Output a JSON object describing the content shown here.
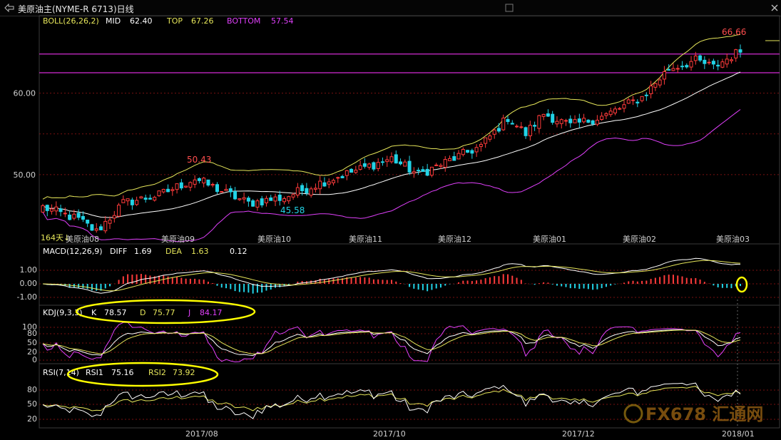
{
  "window": {
    "title": "美原油主(NYME-R 6713)日线",
    "back_icon": "back-arrow-icon",
    "scroll_icon": "scroll-handle-icon",
    "close_icon": "close-icon"
  },
  "colors": {
    "up": "#ff3b3b",
    "down": "#22d3e6",
    "boll_mid": "#ffffff",
    "boll_top": "#e6e65a",
    "boll_bottom": "#e040fb",
    "hline": "#d22bd2",
    "grid": "#7a1010",
    "axis_text": "#d0d0d0",
    "macd_dea": "#e6e65a",
    "highlight": "#ffff00"
  },
  "main_panel": {
    "indicator": "BOLL(26,26,2)",
    "mid_label": "MID",
    "mid_value": "62.40",
    "top_label": "TOP",
    "top_value": "67.26",
    "bottom_label": "BOTTOM",
    "bottom_value": "57.54",
    "y_ticks": [
      "60.00",
      "50.00"
    ],
    "high_label": "50.43",
    "low_label": "45.58",
    "last_high_label": "66.66",
    "left_label": "164天↓",
    "month_labels": [
      "美原油08",
      "美原油09",
      "美原油10",
      "美原油11",
      "美原油12",
      "美原油01",
      "美原油02",
      "美原油03"
    ],
    "hlines": [
      64.8,
      62.5
    ]
  },
  "macd_panel": {
    "indicator": "MACD(12,26,9)",
    "diff_label": "DIFF",
    "diff_value": "1.69",
    "dea_label": "DEA",
    "dea_value": "1.63",
    "macd_value": "0.12",
    "y_ticks": [
      "1.00",
      "0.00",
      "-1.00"
    ]
  },
  "kdj_panel": {
    "indicator": "KDJ(9,3,3)",
    "k_label": "K",
    "k_value": "78.57",
    "d_label": "D",
    "d_value": "75.77",
    "j_label": "J",
    "j_value": "84.17",
    "y_ticks": [
      "100",
      "80",
      "50",
      "20",
      "0"
    ]
  },
  "rsi_panel": {
    "indicator": "RSI(7,14)",
    "rsi1_label": "RSI1",
    "rsi1_value": "75.16",
    "rsi2_label": "RSI2",
    "rsi2_value": "73.92",
    "y_ticks": [
      "80",
      "50",
      "20"
    ]
  },
  "x_axis": [
    "2017/08",
    "2017/10",
    "2017/12",
    "2018/01"
  ],
  "watermark": "FX678 汇通网",
  "chart_data": {
    "type": "candlestick",
    "title": "美原油主(NYME-R 6713)日线",
    "close_anchors": [
      [
        0,
        46.0
      ],
      [
        8,
        44.5
      ],
      [
        12,
        43.0
      ],
      [
        18,
        46.5
      ],
      [
        26,
        47.5
      ],
      [
        34,
        49.5
      ],
      [
        40,
        48.0
      ],
      [
        46,
        46.5
      ],
      [
        54,
        47.2
      ],
      [
        62,
        49.0
      ],
      [
        70,
        50.5
      ],
      [
        78,
        52.0
      ],
      [
        84,
        50.0
      ],
      [
        90,
        51.5
      ],
      [
        98,
        53.5
      ],
      [
        104,
        57.0
      ],
      [
        108,
        55.0
      ],
      [
        112,
        57.5
      ],
      [
        118,
        56.0
      ],
      [
        126,
        57.3
      ],
      [
        134,
        59.5
      ],
      [
        140,
        63.0
      ],
      [
        146,
        64.0
      ],
      [
        150,
        63.2
      ],
      [
        156,
        65.2
      ]
    ],
    "n_bars": 157,
    "boll": {
      "top_last": 67.26,
      "mid_last": 62.4,
      "bottom_last": 57.54
    },
    "macd": {
      "diff_last": 1.69,
      "dea_last": 1.63,
      "hist_last": 0.12
    },
    "kdj": {
      "k_last": 78.57,
      "d_last": 75.77,
      "j_last": 84.17
    },
    "rsi": {
      "rsi1_last": 75.16,
      "rsi2_last": 73.92
    },
    "annotations": [
      {
        "label": "50.43",
        "bar": 70
      },
      {
        "label": "45.58",
        "bar": 112
      },
      {
        "label": "66.66",
        "bar": 152
      }
    ],
    "ylim_main": [
      41.5,
      69.5
    ]
  }
}
